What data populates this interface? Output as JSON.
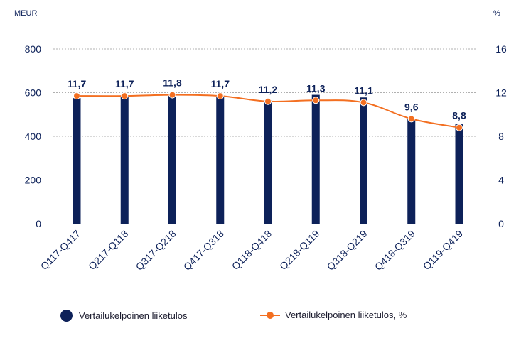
{
  "chart_data": {
    "type": "bar+line",
    "categories": [
      "Q117-Q417",
      "Q217-Q118",
      "Q317-Q218",
      "Q417-Q318",
      "Q118-Q418",
      "Q218-Q119",
      "Q318-Q219",
      "Q418-Q319",
      "Q119-Q419"
    ],
    "left_axis": {
      "unit": "MEUR",
      "ticks": [
        "0",
        "200",
        "400",
        "600",
        "800"
      ],
      "range": [
        0,
        800
      ]
    },
    "right_axis": {
      "unit": "%",
      "ticks": [
        "0",
        "4",
        "8",
        "12",
        "16"
      ],
      "range": [
        0,
        16
      ]
    },
    "grid": true,
    "series": [
      {
        "name": "Vertailukelpoinen liiketulos",
        "type": "bar",
        "axis": "left",
        "values": [
          575,
          580,
          585,
          582,
          565,
          590,
          578,
          478,
          455
        ]
      },
      {
        "name": "Vertailukelpoinen liiketulos, %",
        "type": "line",
        "axis": "right",
        "values": [
          11.7,
          11.7,
          11.8,
          11.7,
          11.2,
          11.3,
          11.1,
          9.6,
          8.8
        ],
        "labels": [
          "11,7",
          "11,7",
          "11,8",
          "11,7",
          "11,2",
          "11,3",
          "11,1",
          "9,6",
          "8,8"
        ]
      }
    ],
    "legend_position": "bottom",
    "colors": {
      "bar": "#0d2159",
      "line": "#f36f21",
      "text": "#0d2159",
      "grid": "#b0b0b0"
    }
  }
}
